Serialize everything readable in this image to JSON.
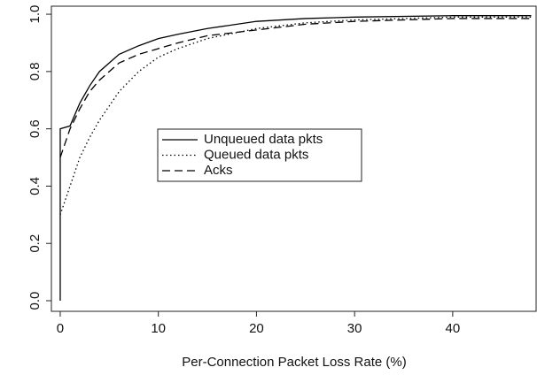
{
  "chart_data": {
    "type": "line",
    "x_label": "Per-Connection Packet Loss Rate (%)",
    "x": [
      0,
      0,
      1,
      2,
      3,
      4,
      5,
      6,
      8,
      10,
      12,
      15,
      20,
      25,
      30,
      40,
      48
    ],
    "series": [
      {
        "name": "Unqueued data pkts",
        "color": "#000000",
        "style": "solid",
        "values": [
          0,
          0.6,
          0.61,
          0.69,
          0.75,
          0.8,
          0.83,
          0.86,
          0.89,
          0.915,
          0.93,
          0.95,
          0.975,
          0.985,
          0.99,
          0.995,
          0.995
        ]
      },
      {
        "name": "Queued data pkts",
        "color": "#000000",
        "style": "dotted",
        "values": [
          null,
          0.3,
          0.4,
          0.5,
          0.57,
          0.63,
          0.68,
          0.73,
          0.8,
          0.85,
          0.88,
          0.915,
          0.95,
          0.97,
          0.98,
          0.99,
          0.99
        ]
      },
      {
        "name": "Acks",
        "color": "#000000",
        "style": "dashed",
        "values": [
          null,
          0.5,
          0.6,
          0.67,
          0.73,
          0.77,
          0.8,
          0.83,
          0.86,
          0.88,
          0.9,
          0.925,
          0.945,
          0.965,
          0.975,
          0.985,
          0.985
        ]
      }
    ],
    "xlim": [
      -0.9,
      48.5
    ],
    "ylim": [
      -0.037,
      1.028
    ],
    "xticks": [
      0,
      10,
      20,
      30,
      40
    ],
    "yticks": [
      {
        "value": 0,
        "label": "0.0"
      },
      0.2,
      0.4,
      0.6,
      0.8,
      {
        "value": 1,
        "label": "1.0"
      }
    ],
    "legend": "center"
  }
}
